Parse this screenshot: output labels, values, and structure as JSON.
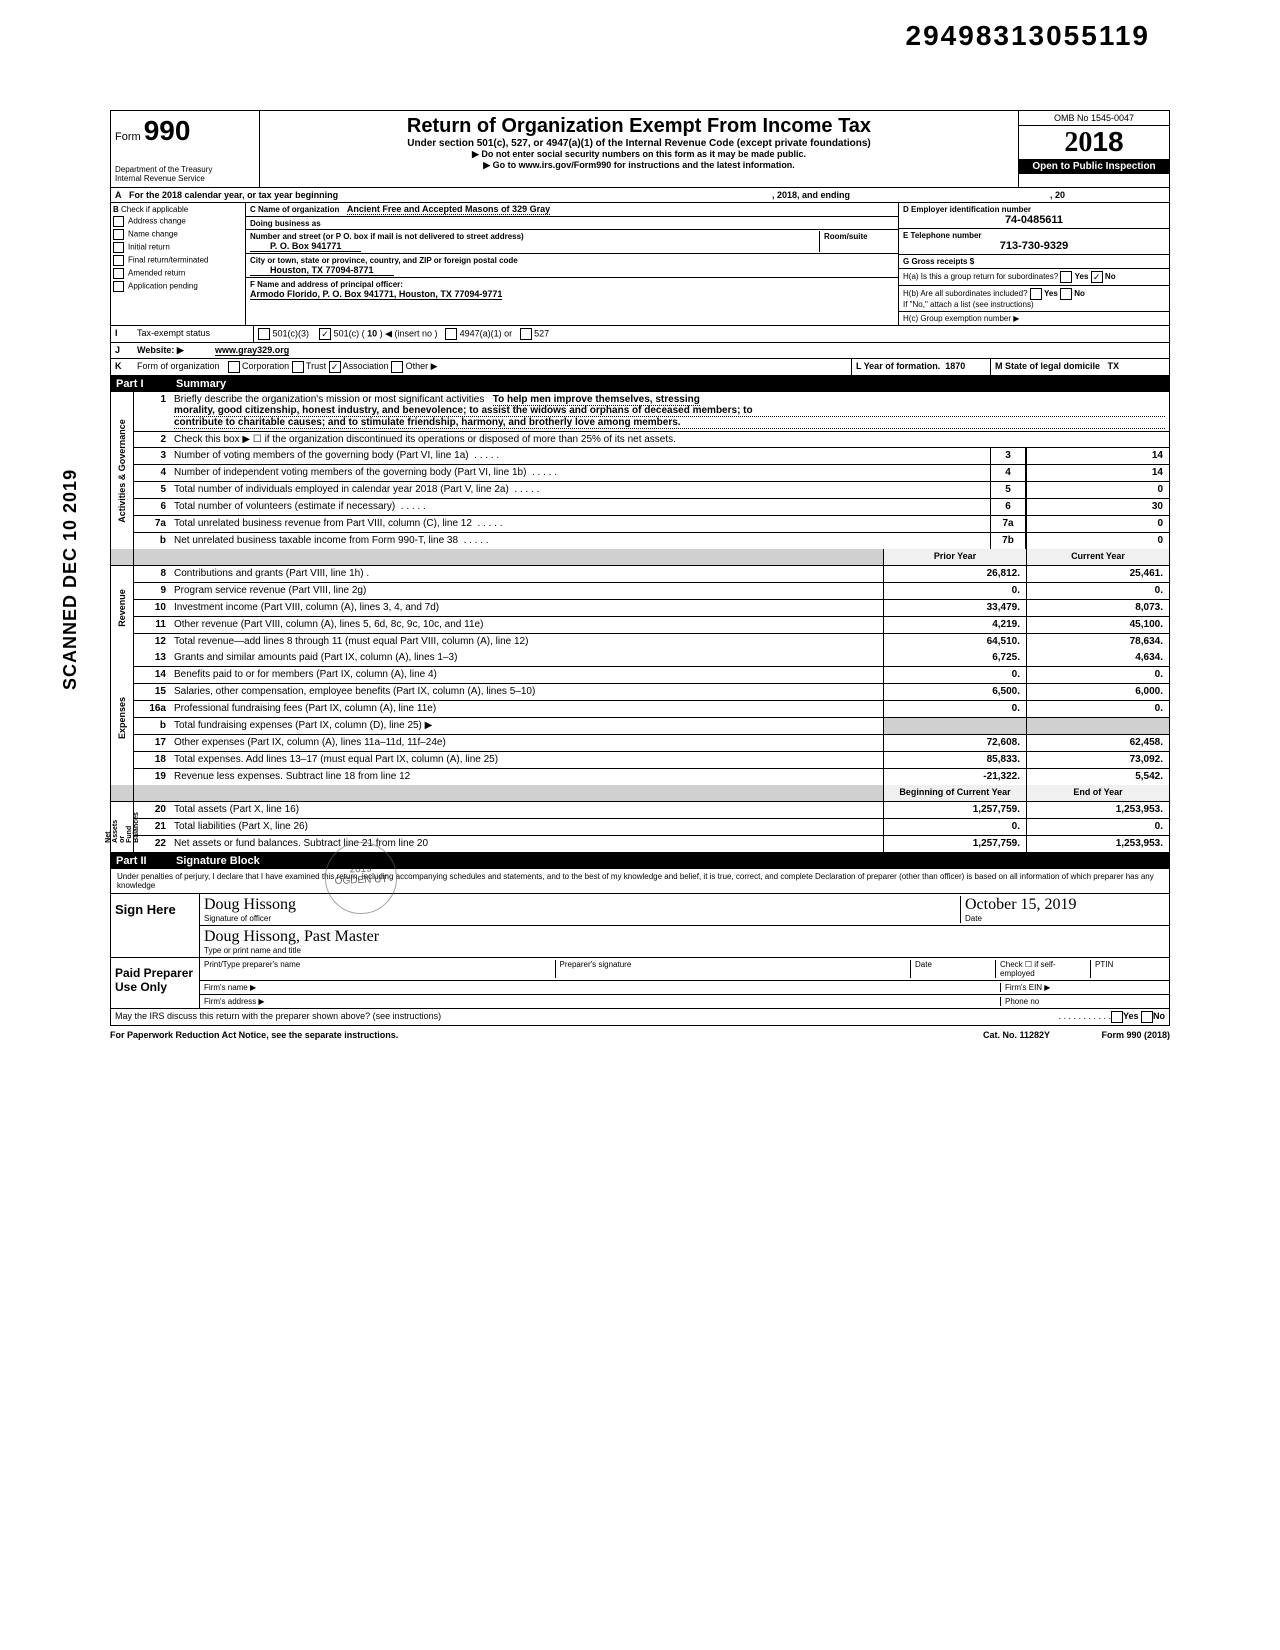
{
  "doc_id": "29498313055119",
  "scanned_stamp": "SCANNED DEC 10 2019",
  "received_stamp": "RECEIVED\n2019\nOGDEN UT",
  "header": {
    "form_prefix": "Form",
    "form_number": "990",
    "dept": "Department of the Treasury\nInternal Revenue Service",
    "title": "Return of Organization Exempt From Income Tax",
    "sub": "Under section 501(c), 527, or 4947(a)(1) of the Internal Revenue Code (except private foundations)",
    "warn": "▶ Do not enter social security numbers on this form as it may be made public.",
    "goto": "▶ Go to www.irs.gov/Form990 for instructions and the latest information.",
    "omb": "OMB No 1545-0047",
    "year": "2018",
    "open": "Open to Public Inspection"
  },
  "row_a": {
    "label": "A",
    "text": "For the 2018 calendar year, or tax year beginning",
    "mid": ", 2018, and ending",
    "end": ", 20"
  },
  "col_b": {
    "label": "B",
    "header": "Check if applicable",
    "items": [
      "Address change",
      "Name change",
      "Initial return",
      "Final return/terminated",
      "Amended return",
      "Application pending"
    ]
  },
  "col_c": {
    "c_label": "C Name of organization",
    "c_val": "Ancient Free and Accepted Masons of 329 Gray",
    "dba_label": "Doing business as",
    "addr_label": "Number and street (or P O. box if mail is not delivered to street address)",
    "room_label": "Room/suite",
    "addr_val": "P. O. Box 941771",
    "city_label": "City or town, state or province, country, and ZIP or foreign postal code",
    "city_val": "Houston,  TX   77094-8771",
    "f_label": "F Name and address of principal officer:",
    "f_val": "Armodo Florido,  P. O. Box 941771,  Houston, TX   77094-9771"
  },
  "col_right": {
    "d_label": "D Employer identification number",
    "d_val": "74-0485611",
    "e_label": "E Telephone number",
    "e_val": "713-730-9329",
    "g_label": "G Gross receipts $",
    "ha_label": "H(a) Is this a group return for subordinates?",
    "ha_no_checked": true,
    "hb_label": "H(b) Are all subordinates included?",
    "hb_sub": "If \"No,\" attach a list (see instructions)",
    "hc_label": "H(c) Group exemption number ▶"
  },
  "row_i": {
    "label": "I",
    "text": "Tax-exempt status",
    "opt1": "501(c)(3)",
    "opt2_a": "501(c) (",
    "opt2_num": "10",
    "opt2_b": ") ◀ (insert no )",
    "opt3": "4947(a)(1) or",
    "opt4": "527"
  },
  "row_j": {
    "label": "J",
    "text": "Website: ▶",
    "val": "www.gray329.org"
  },
  "row_k": {
    "label": "K",
    "text": "Form of organization",
    "opts": [
      "Corporation",
      "Trust",
      "Association",
      "Other ▶"
    ],
    "checked_idx": 2,
    "l_label": "L Year of formation.",
    "l_val": "1870",
    "m_label": "M State of legal domicile",
    "m_val": "TX"
  },
  "part1": {
    "label": "Part I",
    "title": "Summary"
  },
  "mission": {
    "line1_label": "1",
    "line1_desc": "Briefly describe the organization's mission or most significant activities",
    "line1_val": "To help men improve themselves, stressing",
    "line1_cont1": "morality, good citizenship, honest industry, and benevolence;  to assist the widows and orphans of deceased members;  to",
    "line1_cont2": "contribute to charitable causes;  and to stimulate friendship, harmony, and brotherly love among members.",
    "line2_label": "2",
    "line2_desc": "Check this box ▶ ☐ if the organization discontinued its operations or disposed of more than 25% of its net assets."
  },
  "governance_lines": [
    {
      "no": "3",
      "desc": "Number of voting members of the governing body (Part VI, line 1a)",
      "box": "3",
      "val": "14"
    },
    {
      "no": "4",
      "desc": "Number of independent voting members of the governing body (Part VI, line 1b)",
      "box": "4",
      "val": "14"
    },
    {
      "no": "5",
      "desc": "Total number of individuals employed in calendar year 2018 (Part V, line 2a)",
      "box": "5",
      "val": "0"
    },
    {
      "no": "6",
      "desc": "Total number of volunteers (estimate if necessary)",
      "box": "6",
      "val": "30"
    },
    {
      "no": "7a",
      "desc": "Total unrelated business revenue from Part VIII, column (C), line 12",
      "box": "7a",
      "val": "0"
    },
    {
      "no": "b",
      "desc": "Net unrelated business taxable income from Form 990-T, line 38",
      "box": "7b",
      "val": "0"
    }
  ],
  "col_headers": {
    "prior": "Prior Year",
    "current": "Current Year"
  },
  "revenue_lines": [
    {
      "no": "8",
      "desc": "Contributions and grants (Part VIII, line 1h) .",
      "prior": "26,812.",
      "cur": "25,461."
    },
    {
      "no": "9",
      "desc": "Program service revenue (Part VIII, line 2g)",
      "prior": "0.",
      "cur": "0."
    },
    {
      "no": "10",
      "desc": "Investment income (Part VIII, column (A), lines 3, 4, and 7d)",
      "prior": "33,479.",
      "cur": "8,073."
    },
    {
      "no": "11",
      "desc": "Other revenue (Part VIII, column (A), lines 5, 6d, 8c, 9c, 10c, and 11e)",
      "prior": "4,219.",
      "cur": "45,100."
    },
    {
      "no": "12",
      "desc": "Total revenue—add lines 8 through 11 (must equal Part VIII, column (A), line 12)",
      "prior": "64,510.",
      "cur": "78,634."
    }
  ],
  "expense_lines": [
    {
      "no": "13",
      "desc": "Grants and similar amounts paid (Part IX, column (A), lines 1–3)",
      "prior": "6,725.",
      "cur": "4,634."
    },
    {
      "no": "14",
      "desc": "Benefits paid to or for members (Part IX, column (A), line 4)",
      "prior": "0.",
      "cur": "0."
    },
    {
      "no": "15",
      "desc": "Salaries, other compensation, employee benefits (Part IX, column (A), lines 5–10)",
      "prior": "6,500.",
      "cur": "6,000."
    },
    {
      "no": "16a",
      "desc": "Professional fundraising fees (Part IX, column (A), line 11e)",
      "prior": "0.",
      "cur": "0."
    },
    {
      "no": "b",
      "desc": "Total fundraising expenses (Part IX, column (D), line 25) ▶",
      "prior": "",
      "cur": "",
      "gray": true
    },
    {
      "no": "17",
      "desc": "Other expenses (Part IX, column (A), lines 11a–11d, 11f–24e)",
      "prior": "72,608.",
      "cur": "62,458."
    },
    {
      "no": "18",
      "desc": "Total expenses. Add lines 13–17 (must equal Part IX, column (A), line 25)",
      "prior": "85,833.",
      "cur": "73,092."
    },
    {
      "no": "19",
      "desc": "Revenue less expenses. Subtract line 18 from line 12",
      "prior": "-21,322.",
      "cur": "5,542."
    }
  ],
  "net_headers": {
    "begin": "Beginning of Current Year",
    "end": "End of Year"
  },
  "net_lines": [
    {
      "no": "20",
      "desc": "Total assets (Part X, line 16)",
      "prior": "1,257,759.",
      "cur": "1,253,953."
    },
    {
      "no": "21",
      "desc": "Total liabilities (Part X, line 26)",
      "prior": "0.",
      "cur": "0."
    },
    {
      "no": "22",
      "desc": "Net assets or fund balances. Subtract line 21 from line 20",
      "prior": "1,257,759.",
      "cur": "1,253,953."
    }
  ],
  "side_labels": {
    "gov": "Activities & Governance",
    "rev": "Revenue",
    "exp": "Expenses",
    "net": "Net Assets or\nFund Balances"
  },
  "part2": {
    "label": "Part II",
    "title": "Signature Block"
  },
  "sig": {
    "penalty": "Under penalties of perjury, I declare that I have examined this return, including accompanying schedules and statements, and to the best of my knowledge and belief, it is true, correct, and complete  Declaration of preparer (other than officer) is based on all information of which preparer has any knowledge",
    "sign_here": "Sign Here",
    "sig_val": "Doug Hissong",
    "sig_label": "Signature of officer",
    "date_val": "October 15, 2019",
    "date_label": "Date",
    "name_val": "Doug Hissong, Past Master",
    "name_label": "Type or print name and title",
    "paid": "Paid Preparer Use Only",
    "prep_name": "Print/Type preparer's name",
    "prep_sig": "Preparer's signature",
    "prep_date": "Date",
    "check_self": "Check ☐ if self-employed",
    "ptin": "PTIN",
    "firm_name": "Firm's name  ▶",
    "firm_ein": "Firm's EIN ▶",
    "firm_addr": "Firm's address ▶",
    "phone": "Phone no",
    "may_irs": "May the IRS discuss this return with the preparer shown above? (see instructions)",
    "yes": "Yes",
    "no": "No"
  },
  "footer": {
    "pra": "For Paperwork Reduction Act Notice, see the separate instructions.",
    "cat": "Cat. No. 11282Y",
    "form": "Form 990 (2018)"
  }
}
